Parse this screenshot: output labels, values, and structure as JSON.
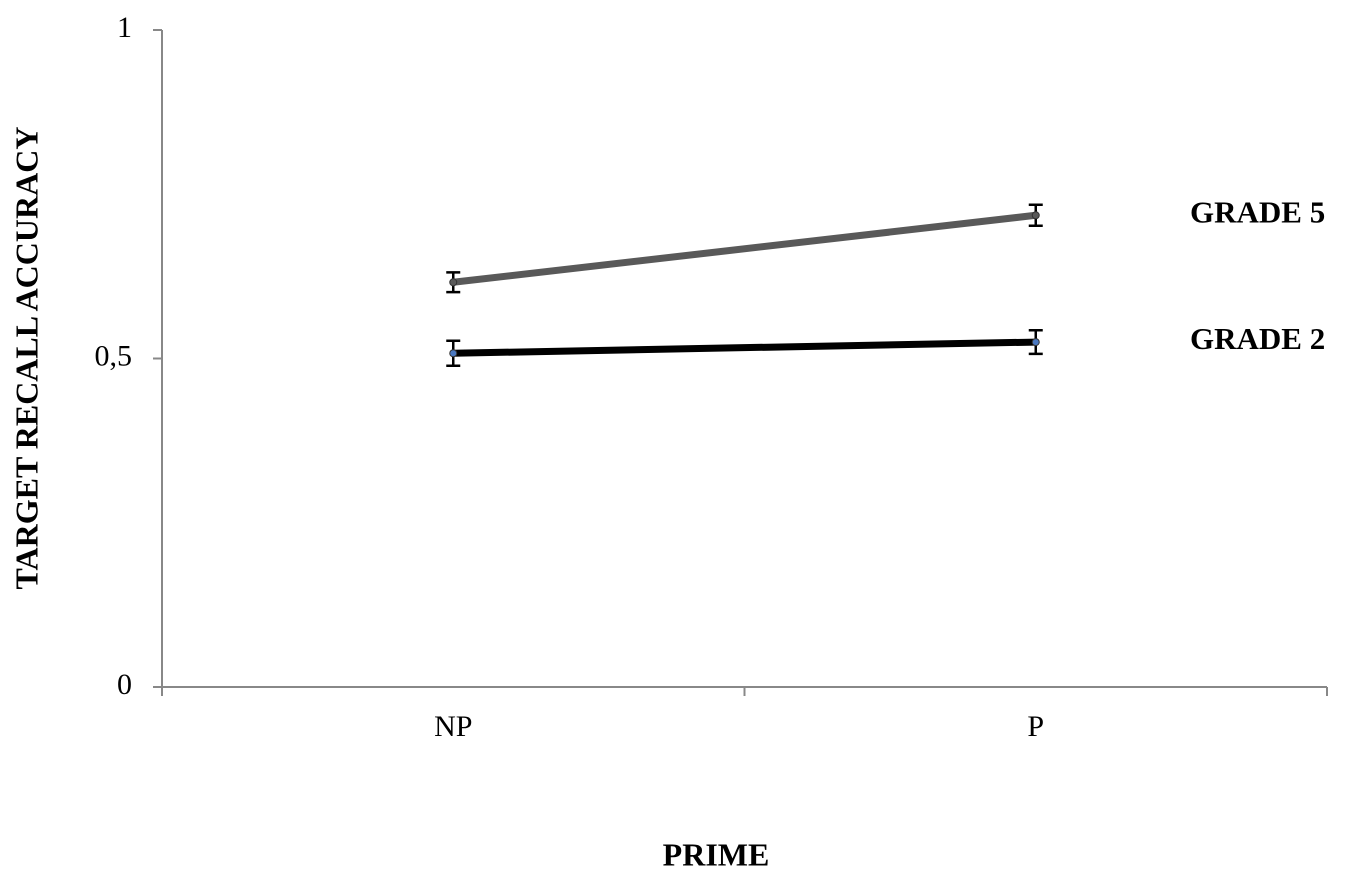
{
  "chart_data": {
    "type": "line",
    "x_label": "PRIME",
    "y_label": "TARGET RECALL ACCURACY",
    "categories": [
      "NP",
      "P"
    ],
    "ylim": [
      0,
      1
    ],
    "yticks": [
      0,
      {
        "value": 0.5,
        "label": "0,5"
      },
      1
    ],
    "series": [
      {
        "name": "GRADE 5",
        "color": "#595959",
        "marker_color": "#595959",
        "values": [
          0.616,
          0.718
        ],
        "errors": [
          0.015,
          0.016
        ]
      },
      {
        "name": "GRADE 2",
        "color": "#000000",
        "marker_color": "#4a78c0",
        "values": [
          0.508,
          0.525
        ],
        "errors": [
          0.019,
          0.018
        ]
      }
    ]
  }
}
